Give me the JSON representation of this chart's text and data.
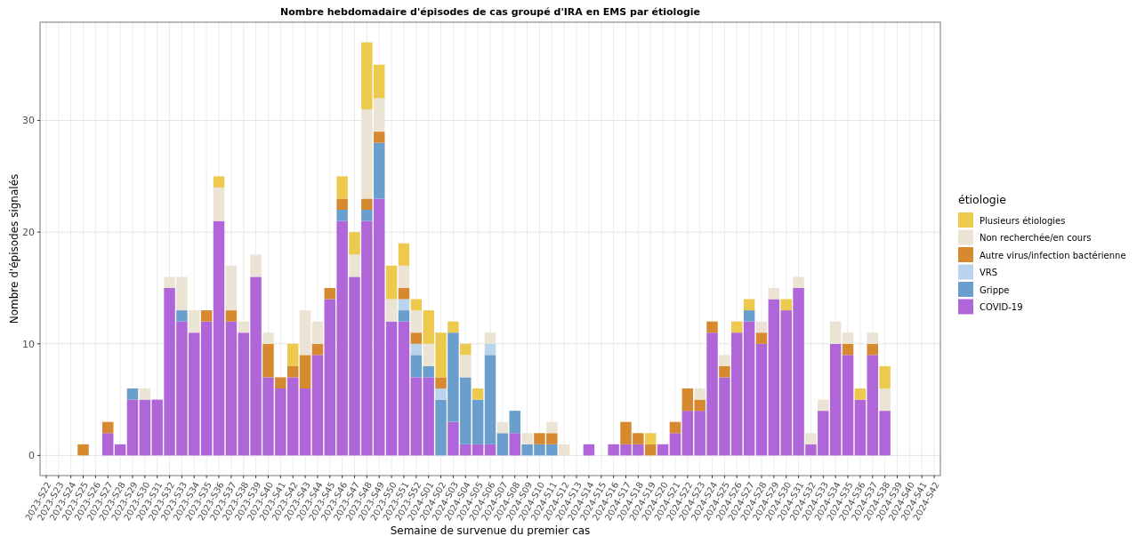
{
  "chart_data": {
    "type": "bar",
    "stacked": true,
    "title": "Nombre hebdomadaire d'épisodes de cas groupé d'IRA en EMS par étiologie",
    "xlabel": "Semaine de survenue du premier cas",
    "ylabel": "Nombre d'épisodes signalés",
    "legend_title": "étiologie",
    "categories": [
      "2023-S22",
      "2023-S23",
      "2023-S24",
      "2023-S25",
      "2023-S26",
      "2023-S27",
      "2023-S28",
      "2023-S29",
      "2023-S30",
      "2023-S31",
      "2023-S32",
      "2023-S33",
      "2023-S34",
      "2023-S35",
      "2023-S36",
      "2023-S37",
      "2023-S38",
      "2023-S39",
      "2023-S40",
      "2023-S41",
      "2023-S42",
      "2023-S43",
      "2023-S44",
      "2023-S45",
      "2023-S46",
      "2023-S47",
      "2023-S48",
      "2023-S49",
      "2023-S50",
      "2023-S51",
      "2023-S52",
      "2024-S01",
      "2024-S02",
      "2024-S03",
      "2024-S04",
      "2024-S05",
      "2024-S06",
      "2024-S07",
      "2024-S08",
      "2024-S09",
      "2024-S10",
      "2024-S11",
      "2024-S12",
      "2024-S13",
      "2024-S14",
      "2024-S15",
      "2024-S16",
      "2024-S17",
      "2024-S18",
      "2024-S19",
      "2024-S20",
      "2024-S21",
      "2024-S22",
      "2024-S23",
      "2024-S24",
      "2024-S25",
      "2024-S26",
      "2024-S27",
      "2024-S28",
      "2024-S29",
      "2024-S30",
      "2024-S31",
      "2024-S32",
      "2024-S33",
      "2024-S34",
      "2024-S35",
      "2024-S36",
      "2024-S37",
      "2024-S38",
      "2024-S39",
      "2024-S40",
      "2024-S41",
      "2024-S42"
    ],
    "series": [
      {
        "name": "COVID-19",
        "color": "#b066d9",
        "values": [
          0,
          0,
          0,
          0,
          0,
          2,
          1,
          5,
          5,
          5,
          15,
          12,
          11,
          12,
          21,
          12,
          11,
          16,
          7,
          6,
          7,
          6,
          9,
          14,
          21,
          16,
          21,
          23,
          12,
          12,
          7,
          7,
          0,
          3,
          1,
          1,
          1,
          0,
          2,
          0,
          0,
          0,
          0,
          0,
          1,
          0,
          1,
          1,
          1,
          0,
          1,
          2,
          4,
          4,
          11,
          7,
          11,
          12,
          10,
          14,
          13,
          15,
          1,
          4,
          10,
          9,
          5,
          9,
          4,
          0,
          0,
          0,
          0
        ]
      },
      {
        "name": "Grippe",
        "color": "#6a9fcd",
        "values": [
          0,
          0,
          0,
          0,
          0,
          0,
          0,
          1,
          0,
          0,
          0,
          1,
          0,
          0,
          0,
          0,
          0,
          0,
          0,
          0,
          0,
          0,
          0,
          0,
          1,
          0,
          1,
          5,
          0,
          1,
          2,
          1,
          5,
          8,
          6,
          4,
          8,
          2,
          2,
          1,
          1,
          1,
          0,
          0,
          0,
          0,
          0,
          0,
          0,
          0,
          0,
          0,
          0,
          0,
          0,
          0,
          0,
          1,
          0,
          0,
          0,
          0,
          0,
          0,
          0,
          0,
          0,
          0,
          0,
          0,
          0,
          0,
          0
        ]
      },
      {
        "name": "VRS",
        "color": "#b9d4ec",
        "values": [
          0,
          0,
          0,
          0,
          0,
          0,
          0,
          0,
          0,
          0,
          0,
          0,
          0,
          0,
          0,
          0,
          0,
          0,
          0,
          0,
          0,
          0,
          0,
          0,
          0,
          0,
          0,
          0,
          0,
          1,
          1,
          0,
          1,
          0,
          0,
          0,
          1,
          0,
          0,
          0,
          0,
          0,
          0,
          0,
          0,
          0,
          0,
          0,
          0,
          0,
          0,
          0,
          0,
          0,
          0,
          0,
          0,
          0,
          0,
          0,
          0,
          0,
          0,
          0,
          0,
          0,
          0,
          0,
          0,
          0,
          0,
          0,
          0
        ]
      },
      {
        "name": "Autre virus/infection bactérienne",
        "color": "#d6892e",
        "values": [
          0,
          0,
          0,
          1,
          0,
          1,
          0,
          0,
          0,
          0,
          0,
          0,
          0,
          1,
          0,
          1,
          0,
          0,
          3,
          1,
          1,
          3,
          1,
          1,
          1,
          0,
          1,
          1,
          0,
          1,
          1,
          0,
          1,
          0,
          0,
          0,
          0,
          0,
          0,
          0,
          1,
          1,
          0,
          0,
          0,
          0,
          0,
          2,
          1,
          1,
          0,
          1,
          2,
          1,
          1,
          1,
          0,
          0,
          1,
          0,
          0,
          0,
          0,
          0,
          0,
          1,
          0,
          1,
          0,
          0,
          0,
          0,
          0
        ]
      },
      {
        "name": "Non recherchée/en cours",
        "color": "#ebe4d4",
        "values": [
          0,
          0,
          0,
          0,
          0,
          0,
          0,
          0,
          1,
          0,
          1,
          3,
          2,
          0,
          3,
          4,
          1,
          2,
          1,
          0,
          0,
          4,
          2,
          0,
          0,
          2,
          8,
          3,
          2,
          2,
          2,
          2,
          0,
          0,
          2,
          0,
          1,
          1,
          0,
          1,
          0,
          1,
          1,
          0,
          0,
          0,
          0,
          0,
          0,
          0,
          0,
          0,
          0,
          1,
          0,
          1,
          0,
          0,
          1,
          1,
          0,
          1,
          1,
          1,
          2,
          1,
          0,
          1,
          2,
          0,
          0,
          0,
          0
        ]
      },
      {
        "name": "Plusieurs étiologies",
        "color": "#edc94e",
        "values": [
          0,
          0,
          0,
          0,
          0,
          0,
          0,
          0,
          0,
          0,
          0,
          0,
          0,
          0,
          1,
          0,
          0,
          0,
          0,
          0,
          2,
          0,
          0,
          0,
          2,
          2,
          6,
          3,
          3,
          2,
          1,
          3,
          4,
          1,
          1,
          1,
          0,
          0,
          0,
          0,
          0,
          0,
          0,
          0,
          0,
          0,
          0,
          0,
          0,
          1,
          0,
          0,
          0,
          0,
          0,
          0,
          1,
          1,
          0,
          0,
          1,
          0,
          0,
          0,
          0,
          0,
          1,
          0,
          2,
          0,
          0,
          0,
          0
        ]
      }
    ],
    "ylim": [
      -1.8,
      38.8
    ],
    "yticks": [
      0,
      10,
      20,
      30
    ],
    "grid": true,
    "legend": "right"
  }
}
